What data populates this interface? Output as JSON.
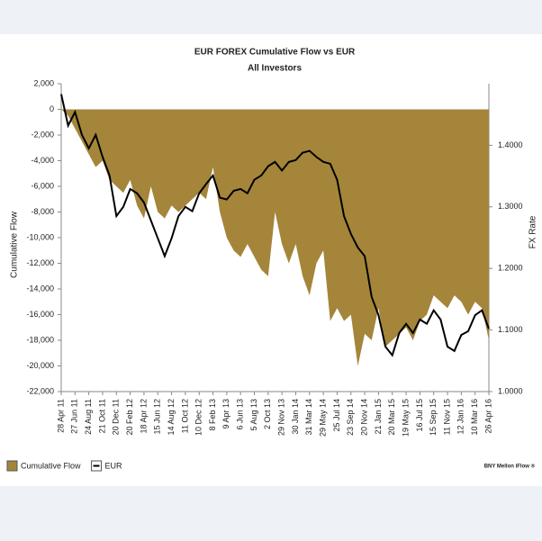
{
  "chart_data": {
    "type": "area-line",
    "title": "EUR  FOREX Cumulative Flow vs  EUR",
    "subtitle": "All Investors",
    "y_label": "Cumulative Flow",
    "y2_label": "FX Rate",
    "credit": "BNY Mellon iFlow ®",
    "categories": [
      "28 Apr 11",
      null,
      "27 Jun 11",
      null,
      "24 Aug 11",
      null,
      "21 Oct 11",
      null,
      "20 Dec 11",
      null,
      "20 Feb 12",
      null,
      "18 Apr 12",
      null,
      "15 Jun 12",
      null,
      "14 Aug 12",
      null,
      "11 Oct 12",
      null,
      "10 Dec 12",
      null,
      "8 Feb 13",
      null,
      "9 Apr 13",
      null,
      "6 Jun 13",
      null,
      "5 Aug 13",
      null,
      "2 Oct 13",
      null,
      "29 Nov 13",
      null,
      "30 Jan 14",
      null,
      "31 Mar 14",
      null,
      "29 May 14",
      null,
      "25 Jul 14",
      null,
      "23 Sep 14",
      null,
      "20 Nov 14",
      null,
      "21 Jan 15",
      null,
      "20 Mar 15",
      null,
      "19 May 15",
      null,
      "16 Jul 15",
      null,
      "15 Sep 15",
      null,
      "11 Nov 15",
      null,
      "12 Jan 16",
      null,
      "10 Mar 16",
      null,
      "26 Apr 16"
    ],
    "series": [
      {
        "name": "Cumulative Flow",
        "color": "#a4853a",
        "kind": "area",
        "values": [
          0,
          -500,
          -1500,
          -2500,
          -3500,
          -4500,
          -4000,
          -5500,
          -6000,
          -6500,
          -5500,
          -7500,
          -8500,
          -6000,
          -8000,
          -8500,
          -7500,
          -8000,
          -7500,
          -7000,
          -6500,
          -7000,
          -4500,
          -8000,
          -10000,
          -11000,
          -11500,
          -10500,
          -11500,
          -12500,
          -13000,
          -8000,
          -10500,
          -12000,
          -10500,
          -13000,
          -14500,
          -12000,
          -11000,
          -16500,
          -15500,
          -16500,
          -16000,
          -20000,
          -17500,
          -18000,
          -15500,
          -18500,
          -18000,
          -17500,
          -17000,
          -18000,
          -16500,
          -16000,
          -14500,
          -15000,
          -15500,
          -14500,
          -15000,
          -16000,
          -15000,
          -15500,
          -18000
        ]
      },
      {
        "name": "EUR",
        "color": "#000000",
        "kind": "line",
        "axis": "y2",
        "values": [
          1.483,
          1.432,
          1.454,
          1.417,
          1.395,
          1.417,
          1.381,
          1.351,
          1.285,
          1.3,
          1.329,
          1.322,
          1.307,
          1.278,
          1.249,
          1.22,
          1.249,
          1.285,
          1.3,
          1.293,
          1.322,
          1.337,
          1.351,
          1.315,
          1.312,
          1.326,
          1.329,
          1.322,
          1.344,
          1.351,
          1.366,
          1.373,
          1.359,
          1.373,
          1.376,
          1.388,
          1.391,
          1.381,
          1.373,
          1.37,
          1.344,
          1.285,
          1.256,
          1.234,
          1.22,
          1.154,
          1.124,
          1.073,
          1.059,
          1.095,
          1.11,
          1.095,
          1.117,
          1.11,
          1.132,
          1.117,
          1.073,
          1.066,
          1.092,
          1.098,
          1.124,
          1.132,
          1.102
        ]
      }
    ],
    "ylim": [
      -22000,
      2000
    ],
    "yticks": [
      {
        "value": 2000,
        "label": "2,000"
      },
      0,
      {
        "value": -2000,
        "label": "-2,000"
      },
      {
        "value": -4000,
        "label": "-4,000"
      },
      {
        "value": -6000,
        "label": "-6,000"
      },
      {
        "value": -8000,
        "label": "-8,000"
      },
      {
        "value": -10000,
        "label": "-10,000"
      },
      {
        "value": -12000,
        "label": "-12,000"
      },
      {
        "value": -14000,
        "label": "-14,000"
      },
      {
        "value": -16000,
        "label": "-16,000"
      },
      {
        "value": -18000,
        "label": "-18,000"
      },
      {
        "value": -20000,
        "label": "-20,000"
      },
      {
        "value": -22000,
        "label": "-22,000"
      }
    ],
    "y2lim": [
      1.0,
      1.5
    ],
    "y2ticks": [
      {
        "value": 1.0,
        "label": "1.0000"
      },
      {
        "value": 1.1,
        "label": "1.1000"
      },
      {
        "value": 1.2,
        "label": "1.2000"
      },
      {
        "value": 1.3,
        "label": "1.3000"
      },
      {
        "value": 1.4,
        "label": "1.4000"
      }
    ]
  }
}
